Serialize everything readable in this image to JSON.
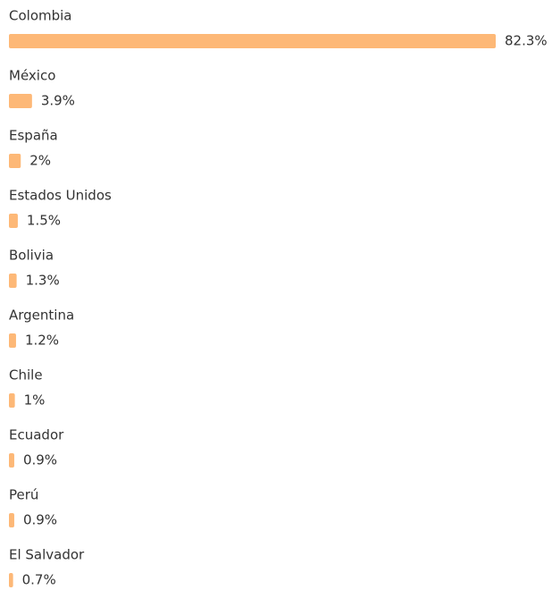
{
  "chart_data": {
    "type": "bar",
    "orientation": "horizontal",
    "categories": [
      "Colombia",
      "México",
      "España",
      "Estados Unidos",
      "Bolivia",
      "Argentina",
      "Chile",
      "Ecuador",
      "Perú",
      "El Salvador"
    ],
    "values": [
      82.3,
      3.9,
      2,
      1.5,
      1.3,
      1.2,
      1,
      0.9,
      0.9,
      0.7
    ],
    "value_labels": [
      "82.3%",
      "3.9%",
      "2%",
      "1.5%",
      "1.3%",
      "1.2%",
      "1%",
      "0.9%",
      "0.9%",
      "0.7%"
    ],
    "color": "#fdb877"
  }
}
